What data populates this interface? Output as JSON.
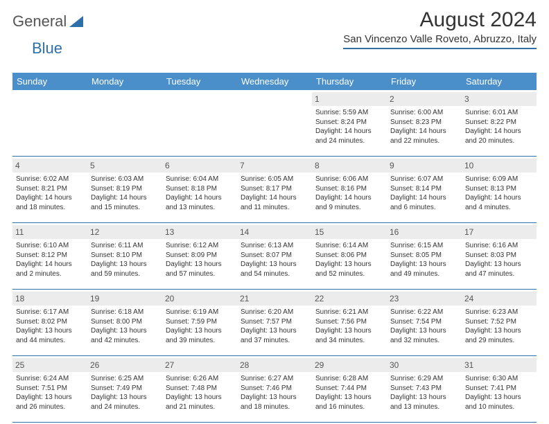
{
  "logo": {
    "text1": "General",
    "text2": "Blue"
  },
  "title": "August 2024",
  "location": "San Vincenzo Valle Roveto, Abruzzo, Italy",
  "weekdays": [
    "Sunday",
    "Monday",
    "Tuesday",
    "Wednesday",
    "Thursday",
    "Friday",
    "Saturday"
  ],
  "colors": {
    "header_bar": "#4a8fc9",
    "rule": "#2f6fa8",
    "daynum_bg": "#ececec",
    "logo_blue": "#2f6fa8"
  },
  "layout": {
    "columns": 7,
    "rows": 5,
    "cell_fontsize": 10,
    "daynum_fontsize": 12,
    "weekday_fontsize": 13,
    "title_fontsize": 30,
    "location_fontsize": 15
  },
  "blanks_before": 4,
  "days": [
    {
      "n": "1",
      "sr": "5:59 AM",
      "ss": "8:24 PM",
      "dl": "14 hours and 24 minutes."
    },
    {
      "n": "2",
      "sr": "6:00 AM",
      "ss": "8:23 PM",
      "dl": "14 hours and 22 minutes."
    },
    {
      "n": "3",
      "sr": "6:01 AM",
      "ss": "8:22 PM",
      "dl": "14 hours and 20 minutes."
    },
    {
      "n": "4",
      "sr": "6:02 AM",
      "ss": "8:21 PM",
      "dl": "14 hours and 18 minutes."
    },
    {
      "n": "5",
      "sr": "6:03 AM",
      "ss": "8:19 PM",
      "dl": "14 hours and 15 minutes."
    },
    {
      "n": "6",
      "sr": "6:04 AM",
      "ss": "8:18 PM",
      "dl": "14 hours and 13 minutes."
    },
    {
      "n": "7",
      "sr": "6:05 AM",
      "ss": "8:17 PM",
      "dl": "14 hours and 11 minutes."
    },
    {
      "n": "8",
      "sr": "6:06 AM",
      "ss": "8:16 PM",
      "dl": "14 hours and 9 minutes."
    },
    {
      "n": "9",
      "sr": "6:07 AM",
      "ss": "8:14 PM",
      "dl": "14 hours and 6 minutes."
    },
    {
      "n": "10",
      "sr": "6:09 AM",
      "ss": "8:13 PM",
      "dl": "14 hours and 4 minutes."
    },
    {
      "n": "11",
      "sr": "6:10 AM",
      "ss": "8:12 PM",
      "dl": "14 hours and 2 minutes."
    },
    {
      "n": "12",
      "sr": "6:11 AM",
      "ss": "8:10 PM",
      "dl": "13 hours and 59 minutes."
    },
    {
      "n": "13",
      "sr": "6:12 AM",
      "ss": "8:09 PM",
      "dl": "13 hours and 57 minutes."
    },
    {
      "n": "14",
      "sr": "6:13 AM",
      "ss": "8:07 PM",
      "dl": "13 hours and 54 minutes."
    },
    {
      "n": "15",
      "sr": "6:14 AM",
      "ss": "8:06 PM",
      "dl": "13 hours and 52 minutes."
    },
    {
      "n": "16",
      "sr": "6:15 AM",
      "ss": "8:05 PM",
      "dl": "13 hours and 49 minutes."
    },
    {
      "n": "17",
      "sr": "6:16 AM",
      "ss": "8:03 PM",
      "dl": "13 hours and 47 minutes."
    },
    {
      "n": "18",
      "sr": "6:17 AM",
      "ss": "8:02 PM",
      "dl": "13 hours and 44 minutes."
    },
    {
      "n": "19",
      "sr": "6:18 AM",
      "ss": "8:00 PM",
      "dl": "13 hours and 42 minutes."
    },
    {
      "n": "20",
      "sr": "6:19 AM",
      "ss": "7:59 PM",
      "dl": "13 hours and 39 minutes."
    },
    {
      "n": "21",
      "sr": "6:20 AM",
      "ss": "7:57 PM",
      "dl": "13 hours and 37 minutes."
    },
    {
      "n": "22",
      "sr": "6:21 AM",
      "ss": "7:56 PM",
      "dl": "13 hours and 34 minutes."
    },
    {
      "n": "23",
      "sr": "6:22 AM",
      "ss": "7:54 PM",
      "dl": "13 hours and 32 minutes."
    },
    {
      "n": "24",
      "sr": "6:23 AM",
      "ss": "7:52 PM",
      "dl": "13 hours and 29 minutes."
    },
    {
      "n": "25",
      "sr": "6:24 AM",
      "ss": "7:51 PM",
      "dl": "13 hours and 26 minutes."
    },
    {
      "n": "26",
      "sr": "6:25 AM",
      "ss": "7:49 PM",
      "dl": "13 hours and 24 minutes."
    },
    {
      "n": "27",
      "sr": "6:26 AM",
      "ss": "7:48 PM",
      "dl": "13 hours and 21 minutes."
    },
    {
      "n": "28",
      "sr": "6:27 AM",
      "ss": "7:46 PM",
      "dl": "13 hours and 18 minutes."
    },
    {
      "n": "29",
      "sr": "6:28 AM",
      "ss": "7:44 PM",
      "dl": "13 hours and 16 minutes."
    },
    {
      "n": "30",
      "sr": "6:29 AM",
      "ss": "7:43 PM",
      "dl": "13 hours and 13 minutes."
    },
    {
      "n": "31",
      "sr": "6:30 AM",
      "ss": "7:41 PM",
      "dl": "13 hours and 10 minutes."
    }
  ],
  "labels": {
    "sunrise": "Sunrise: ",
    "sunset": "Sunset: ",
    "daylight": "Daylight: "
  }
}
